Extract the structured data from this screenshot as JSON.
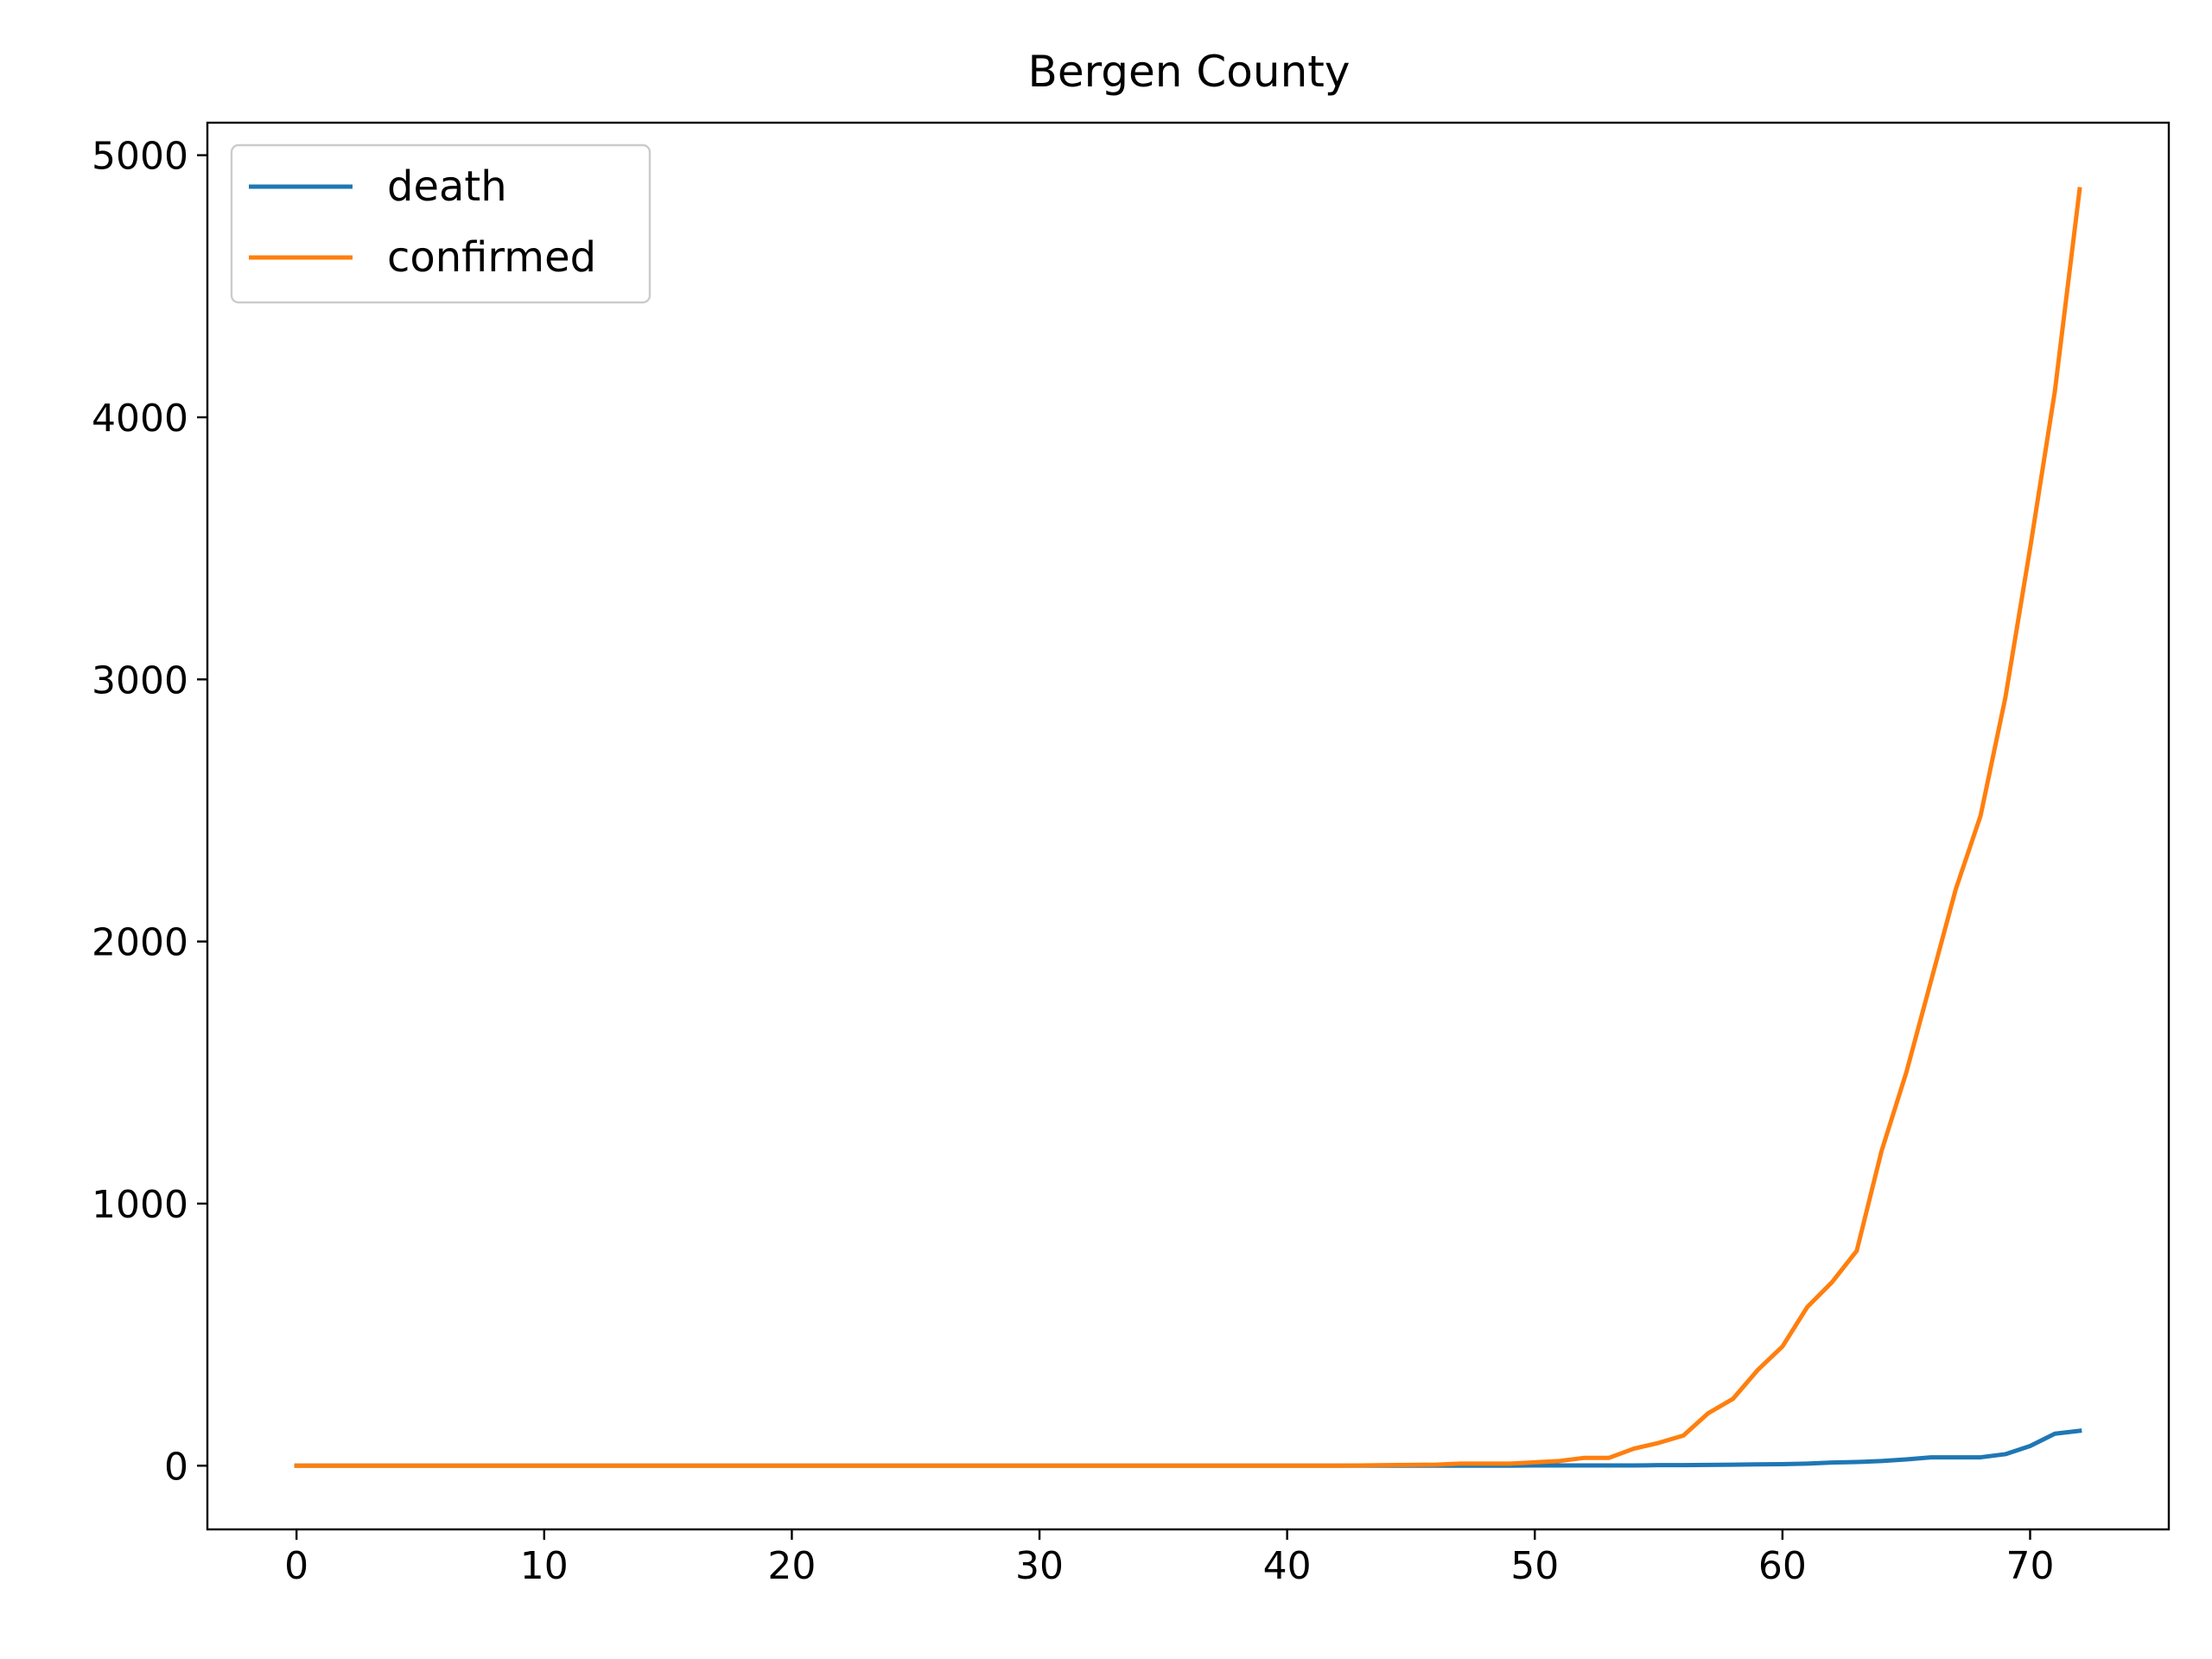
{
  "chart_data": {
    "type": "line",
    "title": "Bergen County",
    "xlabel": "",
    "ylabel": "",
    "xlim": [
      -3.6,
      75.6
    ],
    "ylim": [
      -243,
      5124
    ],
    "xticks": [
      0,
      10,
      20,
      30,
      40,
      50,
      60,
      70
    ],
    "yticks": [
      0,
      1000,
      2000,
      3000,
      4000,
      5000
    ],
    "grid": false,
    "legend_position": "top-left",
    "series": [
      {
        "name": "death",
        "color": "#1f77b4",
        "x": [
          0,
          1,
          2,
          3,
          4,
          5,
          6,
          7,
          8,
          9,
          10,
          11,
          12,
          13,
          14,
          15,
          16,
          17,
          18,
          19,
          20,
          21,
          22,
          23,
          24,
          25,
          26,
          27,
          28,
          29,
          30,
          31,
          32,
          33,
          34,
          35,
          36,
          37,
          38,
          39,
          40,
          41,
          42,
          43,
          44,
          45,
          46,
          47,
          48,
          49,
          50,
          51,
          52,
          53,
          54,
          55,
          56,
          57,
          58,
          59,
          60,
          61,
          62,
          63,
          64,
          65,
          66,
          67,
          68,
          69,
          70,
          71,
          72
        ],
        "values": [
          0,
          0,
          0,
          0,
          0,
          0,
          0,
          0,
          0,
          0,
          0,
          0,
          0,
          0,
          0,
          0,
          0,
          0,
          0,
          0,
          0,
          0,
          0,
          0,
          0,
          0,
          0,
          0,
          0,
          0,
          0,
          0,
          0,
          0,
          0,
          0,
          0,
          0,
          0,
          0,
          0,
          0,
          0,
          0,
          0,
          0,
          0,
          0,
          0,
          0,
          1,
          1,
          1,
          1,
          1,
          2,
          2,
          3,
          4,
          5,
          6,
          8,
          12,
          14,
          18,
          24,
          32,
          32,
          32,
          44,
          75,
          122,
          133
        ]
      },
      {
        "name": "confirmed",
        "color": "#ff7f0e",
        "x": [
          0,
          1,
          2,
          3,
          4,
          5,
          6,
          7,
          8,
          9,
          10,
          11,
          12,
          13,
          14,
          15,
          16,
          17,
          18,
          19,
          20,
          21,
          22,
          23,
          24,
          25,
          26,
          27,
          28,
          29,
          30,
          31,
          32,
          33,
          34,
          35,
          36,
          37,
          38,
          39,
          40,
          41,
          42,
          43,
          44,
          45,
          46,
          47,
          48,
          49,
          50,
          51,
          52,
          53,
          54,
          55,
          56,
          57,
          58,
          59,
          60,
          61,
          62,
          63,
          64,
          65,
          66,
          67,
          68,
          69,
          70,
          71,
          72
        ],
        "values": [
          0,
          0,
          0,
          0,
          0,
          0,
          0,
          0,
          0,
          0,
          0,
          0,
          0,
          0,
          0,
          0,
          0,
          0,
          0,
          0,
          0,
          0,
          0,
          0,
          0,
          0,
          0,
          0,
          0,
          0,
          0,
          0,
          0,
          0,
          0,
          0,
          0,
          0,
          0,
          0,
          0,
          0,
          0,
          1,
          2,
          3,
          4,
          8,
          8,
          8,
          13,
          18,
          30,
          30,
          65,
          87,
          115,
          200,
          255,
          365,
          455,
          605,
          700,
          820,
          1200,
          1500,
          1850,
          2200,
          2480,
          2930,
          3500,
          4100,
          4870
        ]
      }
    ]
  }
}
